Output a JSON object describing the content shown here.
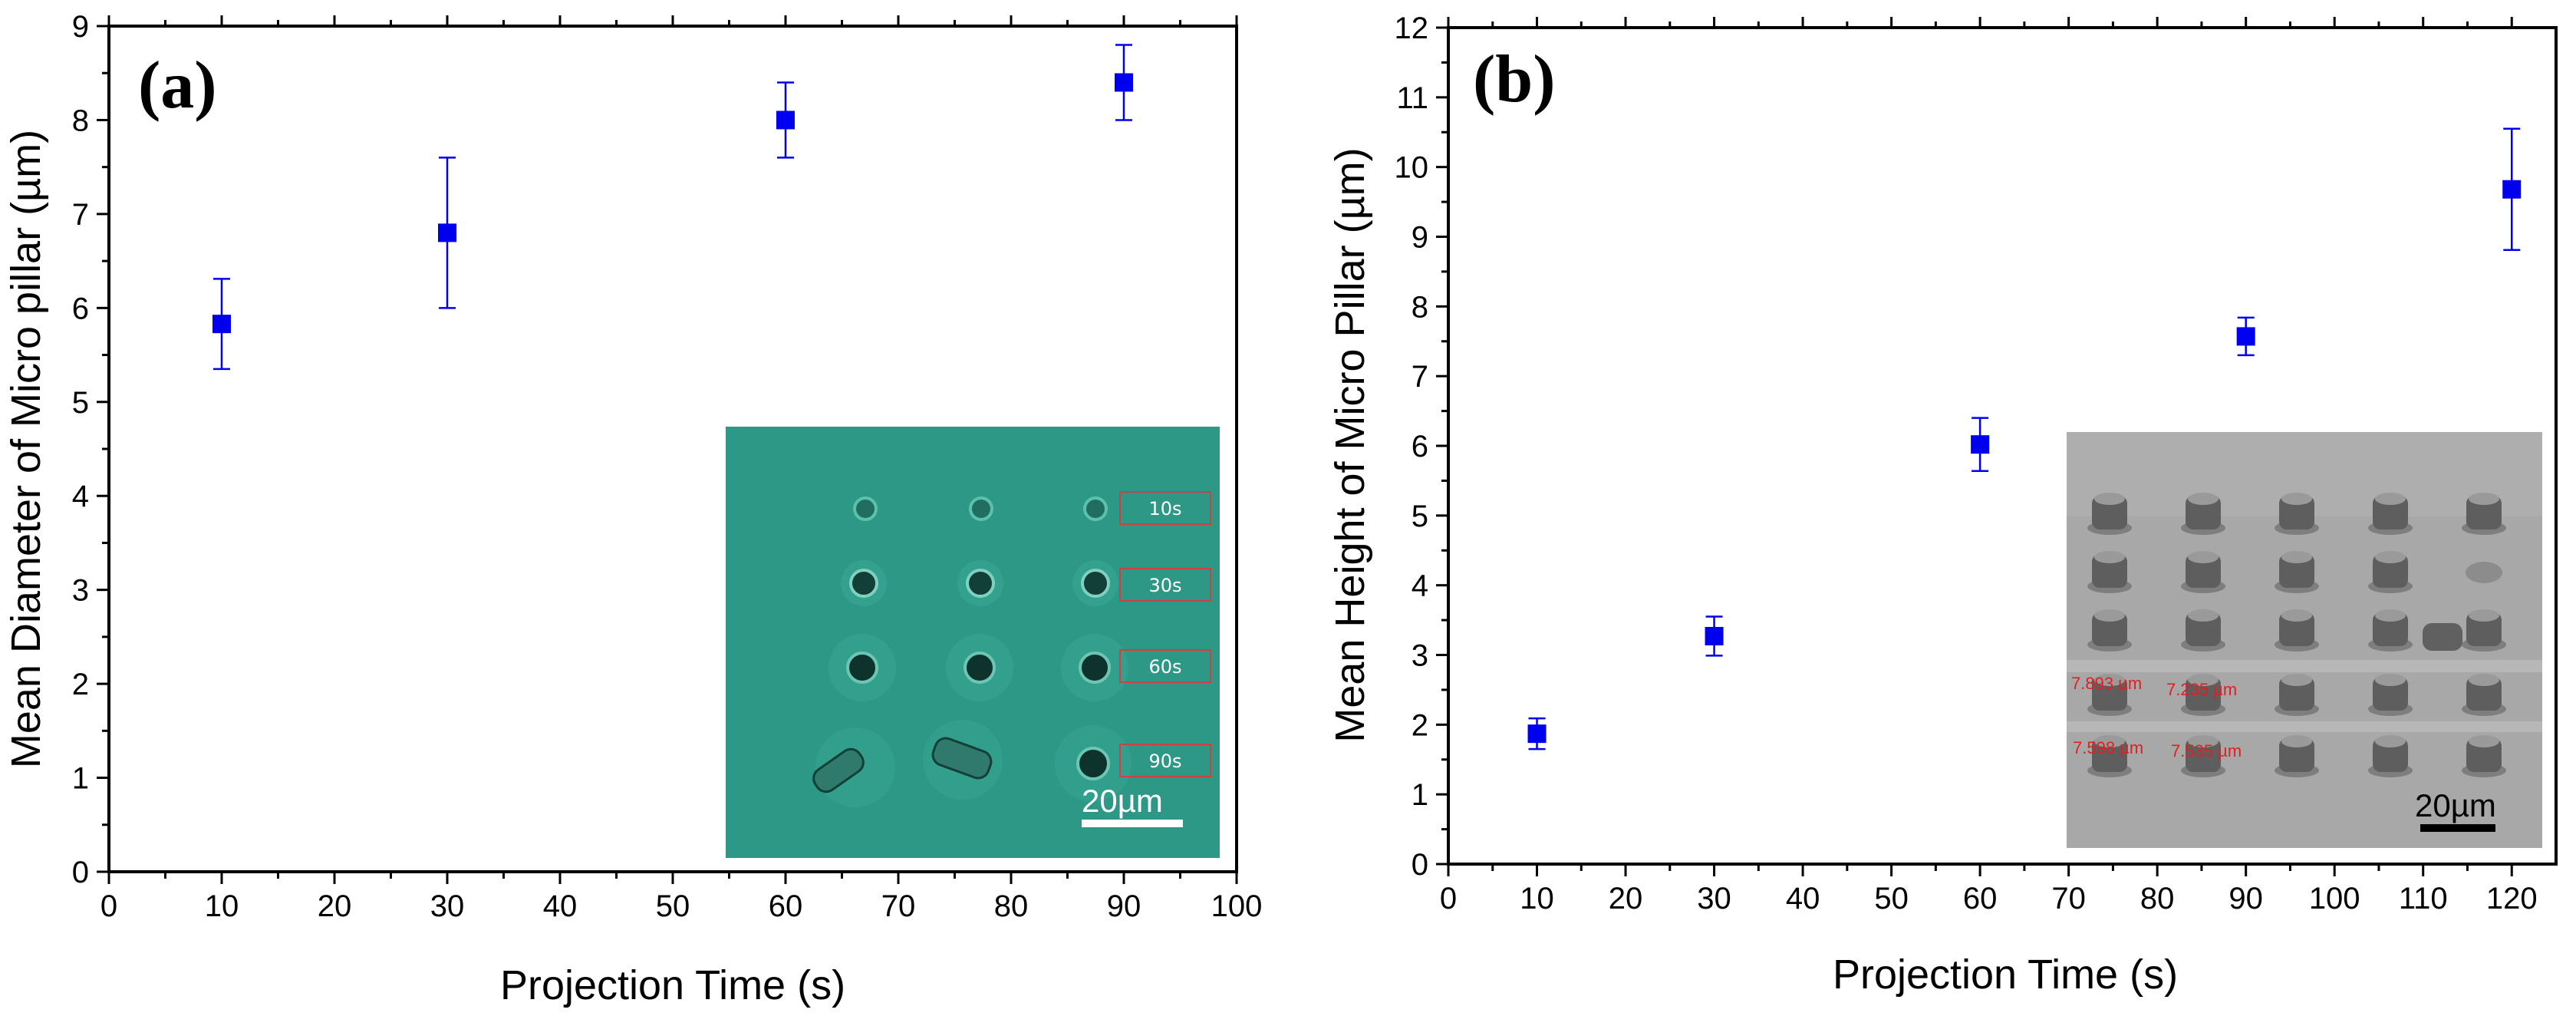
{
  "colors": {
    "marker": "#0000ee",
    "axis": "#000000",
    "inset_a_bg": "#2a9482",
    "inset_b_bg": "#a8a8a8"
  },
  "chart_data": [
    {
      "type": "scatter",
      "panel_label": "(a)",
      "xlabel": "Projection Time (s)",
      "ylabel": "Mean Diameter of Micro pillar (µm)",
      "xlim": [
        0,
        100
      ],
      "ylim": [
        0,
        9
      ],
      "xticks": [
        "0",
        "10",
        "20",
        "30",
        "40",
        "50",
        "60",
        "70",
        "80",
        "90",
        "100"
      ],
      "yticks": [
        "0",
        "1",
        "2",
        "3",
        "4",
        "5",
        "6",
        "7",
        "8",
        "9"
      ],
      "series": [
        {
          "name": "Mean diameter",
          "x": [
            10,
            30,
            60,
            90
          ],
          "y": [
            5.83,
            6.8,
            8.0,
            8.4
          ],
          "err": [
            0.48,
            0.8,
            0.4,
            0.4
          ]
        }
      ],
      "inset": {
        "labels": [
          "10s",
          "30s",
          "60s",
          "90s"
        ],
        "scale_bar": "20µm"
      }
    },
    {
      "type": "scatter",
      "panel_label": "(b)",
      "xlabel": "Projection Time (s)",
      "ylabel": "Mean Height of Micro Pillar (µm)",
      "xlim": [
        0,
        125
      ],
      "ylim": [
        0,
        12
      ],
      "xticks": [
        "0",
        "10",
        "20",
        "30",
        "40",
        "50",
        "60",
        "70",
        "80",
        "90",
        "100",
        "110",
        "120"
      ],
      "yticks": [
        "0",
        "1",
        "2",
        "3",
        "4",
        "5",
        "6",
        "7",
        "8",
        "9",
        "10",
        "11",
        "12"
      ],
      "series": [
        {
          "name": "Mean height",
          "x": [
            10,
            30,
            60,
            90,
            120
          ],
          "y": [
            1.87,
            3.27,
            6.02,
            7.57,
            9.68
          ],
          "err": [
            0.22,
            0.28,
            0.38,
            0.27,
            0.87
          ]
        }
      ],
      "inset": {
        "measurements": [
          "7.893 µm",
          "7.235 µm",
          "7.598 µm",
          "7.535 µm"
        ],
        "scale_bar": "20µm"
      }
    }
  ]
}
